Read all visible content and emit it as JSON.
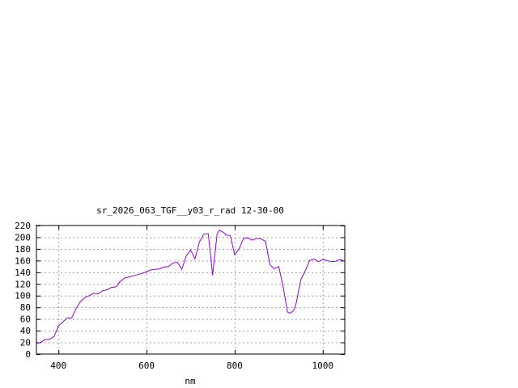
{
  "chart_data": {
    "type": "line",
    "title": "sr_2026_063_TGF__y03_r_rad 12-30-00",
    "xlabel": "nm",
    "ylabel": "",
    "xlim": [
      350,
      1050
    ],
    "ylim": [
      0,
      220
    ],
    "x_ticks": [
      400,
      600,
      800,
      1000
    ],
    "y_ticks": [
      0,
      20,
      40,
      60,
      80,
      100,
      120,
      140,
      160,
      180,
      200,
      220
    ],
    "grid": true,
    "grid_style": "dotted",
    "line_color": "#9400d3",
    "series": [
      {
        "x": [
          350,
          360,
          370,
          380,
          390,
          400,
          410,
          420,
          430,
          440,
          450,
          460,
          470,
          480,
          490,
          500,
          510,
          520,
          530,
          540,
          550,
          560,
          570,
          580,
          590,
          600,
          610,
          620,
          630,
          640,
          650,
          660,
          670,
          680,
          690,
          700,
          710,
          720,
          730,
          740,
          750,
          760,
          765,
          770,
          775,
          780,
          790,
          800,
          810,
          820,
          830,
          840,
          850,
          860,
          870,
          880,
          890,
          900,
          910,
          920,
          925,
          930,
          935,
          940,
          950,
          960,
          970,
          980,
          990,
          1000,
          1010,
          1020,
          1030,
          1040,
          1050
        ],
        "y": [
          18,
          20,
          25,
          25,
          30,
          48,
          55,
          62,
          62,
          78,
          90,
          97,
          100,
          104,
          103,
          108,
          110,
          114,
          115,
          124,
          130,
          132,
          134,
          136,
          138,
          141,
          144,
          145,
          146,
          149,
          150,
          156,
          157,
          145,
          168,
          178,
          163,
          192,
          205,
          206,
          135,
          205,
          212,
          210,
          208,
          204,
          203,
          170,
          180,
          198,
          199,
          195,
          198,
          197,
          193,
          153,
          146,
          150,
          115,
          72,
          70,
          72,
          76,
          88,
          127,
          142,
          160,
          163,
          158,
          162,
          160,
          158,
          159,
          162,
          158
        ]
      }
    ]
  }
}
